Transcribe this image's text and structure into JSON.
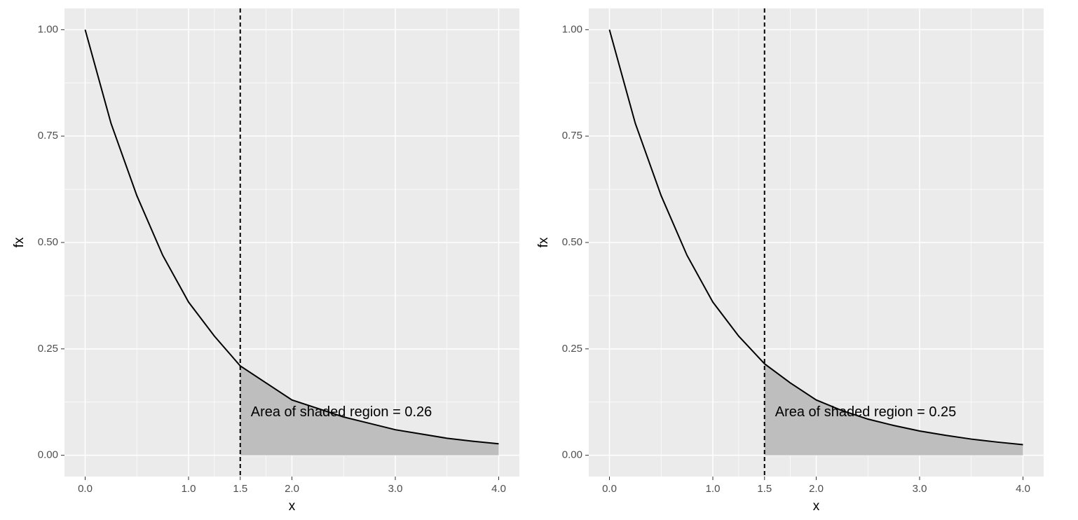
{
  "chart_data": [
    {
      "type": "line",
      "x_label": "x",
      "y_label": "fx",
      "x": [
        0,
        0.25,
        0.5,
        0.75,
        1,
        1.25,
        1.5,
        1.75,
        2,
        2.25,
        2.5,
        2.75,
        3,
        3.25,
        3.5,
        3.75,
        4
      ],
      "series": [
        {
          "name": "fx",
          "color": "#000000",
          "values": [
            1,
            0.78,
            0.61,
            0.47,
            0.36,
            0.28,
            0.21,
            0.17,
            0.13,
            0.11,
            0.09,
            0.075,
            0.06,
            0.05,
            0.04,
            0.033,
            0.027
          ]
        }
      ],
      "vline": 1.5,
      "shade_color": "#bebebe",
      "annotation": "Area of shaded region = 0.26",
      "xlim": [
        -0.2,
        4.2
      ],
      "ylim": [
        -0.05,
        1.05
      ],
      "xticks": [
        {
          "value": 0,
          "label": "0.0"
        },
        {
          "value": 1,
          "label": "1.0"
        },
        1.5,
        {
          "value": 2,
          "label": "2.0"
        },
        {
          "value": 3,
          "label": "3.0"
        },
        {
          "value": 4,
          "label": "4.0"
        }
      ],
      "yticks": [
        {
          "value": 0,
          "label": "0.00"
        },
        {
          "value": 0.25,
          "label": "0.25"
        },
        {
          "value": 0.5,
          "label": "0.50"
        },
        {
          "value": 0.75,
          "label": "0.75"
        },
        {
          "value": 1,
          "label": "1.00"
        }
      ],
      "grid": true
    },
    {
      "type": "line",
      "x_label": "x",
      "y_label": "fx",
      "x": [
        0,
        0.25,
        0.5,
        0.75,
        1,
        1.25,
        1.5,
        1.75,
        2,
        2.25,
        2.5,
        2.75,
        3,
        3.25,
        3.5,
        3.75,
        4
      ],
      "series": [
        {
          "name": "fx",
          "color": "#000000",
          "values": [
            1,
            0.78,
            0.61,
            0.47,
            0.36,
            0.28,
            0.215,
            0.17,
            0.13,
            0.105,
            0.085,
            0.07,
            0.057,
            0.047,
            0.038,
            0.031,
            0.025
          ]
        }
      ],
      "vline": 1.5,
      "shade_color": "#bebebe",
      "annotation": "Area of shaded region = 0.25",
      "xlim": [
        -0.2,
        4.2
      ],
      "ylim": [
        -0.05,
        1.05
      ],
      "xticks": [
        {
          "value": 0,
          "label": "0.0"
        },
        {
          "value": 1,
          "label": "1.0"
        },
        1.5,
        {
          "value": 2,
          "label": "2.0"
        },
        {
          "value": 3,
          "label": "3.0"
        },
        {
          "value": 4,
          "label": "4.0"
        }
      ],
      "yticks": [
        {
          "value": 0,
          "label": "0.00"
        },
        {
          "value": 0.25,
          "label": "0.25"
        },
        {
          "value": 0.5,
          "label": "0.50"
        },
        {
          "value": 0.75,
          "label": "0.75"
        },
        {
          "value": 1,
          "label": "1.00"
        }
      ],
      "grid": true
    }
  ]
}
